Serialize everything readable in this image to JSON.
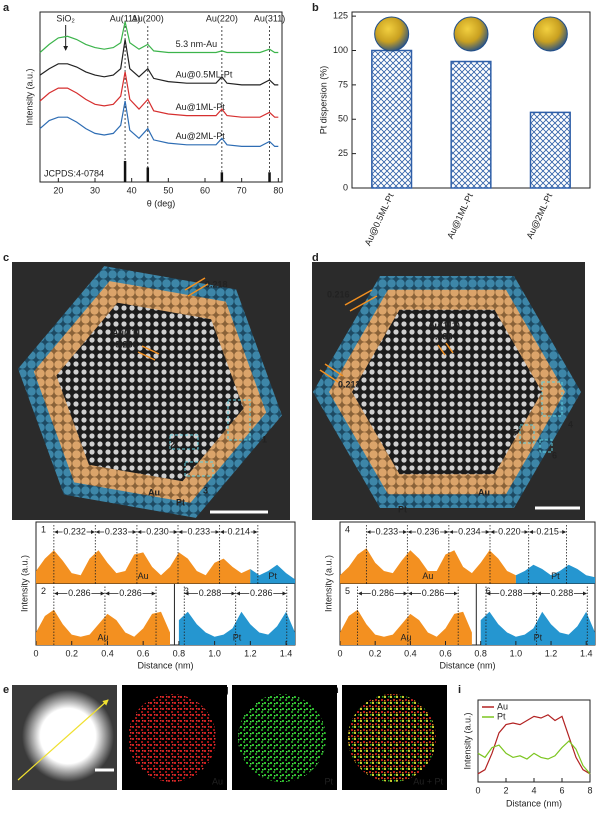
{
  "panel_labels": [
    "a",
    "b",
    "c",
    "d",
    "e",
    "f",
    "g",
    "h",
    "i"
  ],
  "chart_data": [
    {
      "type": "line",
      "xlabel": "θ (deg)",
      "ylabel": "Intensity (a.u.)",
      "x": [
        15,
        17.5,
        20,
        22.5,
        25,
        27.5,
        30,
        32.5,
        35,
        37,
        38.2,
        39.5,
        42,
        44.4,
        46,
        50,
        55,
        60,
        63,
        64.6,
        66,
        70,
        75,
        77.6,
        79,
        80
      ],
      "xlim": [
        15,
        81
      ],
      "xticks": [
        20,
        30,
        40,
        50,
        60,
        70,
        80
      ],
      "ylim": [
        0,
        10.5
      ],
      "series": [
        {
          "name": "5.3 nm-Au",
          "color": "#3cb44b",
          "values": [
            8.0,
            8.5,
            8.9,
            9.0,
            8.8,
            8.5,
            8.3,
            8.2,
            8.3,
            8.6,
            9.9,
            8.6,
            8.2,
            8.5,
            8.1,
            8.0,
            8.0,
            8.0,
            8.0,
            8.1,
            8.0,
            8.0,
            8.0,
            8.2,
            8.0,
            8.0
          ]
        },
        {
          "name": "Au@0.5ML-Pt",
          "color": "#222222",
          "values": [
            6.6,
            7.0,
            7.3,
            7.3,
            7.1,
            6.8,
            6.6,
            6.5,
            6.6,
            7.0,
            8.8,
            7.0,
            6.5,
            7.0,
            6.4,
            6.2,
            6.1,
            6.1,
            6.1,
            6.5,
            6.1,
            6.0,
            6.0,
            6.3,
            6.0,
            6.0
          ]
        },
        {
          "name": "Au@1ML-Pt",
          "color": "#d62f2f",
          "values": [
            5.0,
            5.5,
            5.8,
            5.8,
            5.5,
            5.1,
            4.8,
            4.7,
            4.8,
            5.3,
            6.8,
            5.1,
            4.5,
            5.1,
            4.4,
            4.2,
            4.1,
            4.1,
            4.1,
            4.5,
            4.1,
            4.0,
            4.0,
            4.3,
            4.0,
            4.0
          ]
        },
        {
          "name": "Au@2ML-Pt",
          "color": "#2e6db4",
          "values": [
            3.3,
            3.8,
            4.0,
            4.0,
            3.7,
            3.3,
            3.0,
            2.9,
            3.0,
            3.5,
            5.0,
            3.2,
            2.7,
            3.3,
            2.6,
            2.4,
            2.3,
            2.3,
            2.3,
            2.7,
            2.3,
            2.2,
            2.2,
            2.5,
            2.2,
            2.2
          ]
        }
      ],
      "peak_labels": [
        {
          "label": "Au(111)",
          "x": 38.2
        },
        {
          "label": "Au(200)",
          "x": 44.4
        },
        {
          "label": "Au(220)",
          "x": 64.6
        },
        {
          "label": "Au(311)",
          "x": 77.6
        }
      ],
      "annotation": {
        "label": "SiO₂",
        "x": 22
      },
      "reference": {
        "name": "JCPDS:4-0784",
        "x": [
          38.2,
          44.4,
          64.6,
          77.6
        ],
        "values": [
          1.3,
          0.9,
          0.6,
          0.6
        ]
      }
    },
    {
      "type": "bar",
      "ylabel": "Pt dispersion (%)",
      "categories": [
        "Au@0.5ML-Pt",
        "Au@1ML-Pt",
        "Au@2ML-Pt"
      ],
      "values": [
        100,
        92,
        55
      ],
      "color": "#2f5fa8",
      "ylim": [
        0,
        128
      ],
      "yticks": [
        0,
        25,
        50,
        75,
        100,
        125
      ]
    },
    {
      "type": "profile",
      "xlabel": "Distance (nm)",
      "ylabel": "Intensity (a.u.)",
      "xlim": [
        0,
        1.45
      ],
      "ylim": [
        0,
        1
      ],
      "xticks": [
        0,
        0.2,
        0.4,
        0.6,
        0.8,
        {
          "value": 1,
          "label": "1.0"
        },
        1.2,
        1.4
      ],
      "panels": [
        {
          "label": "1",
          "series": [
            {
              "name": "Au",
              "color": "#f39020",
              "x": [
                0,
                0.05,
                0.1,
                0.15,
                0.2,
                0.25,
                0.3,
                0.35,
                0.4,
                0.45,
                0.5,
                0.55,
                0.6,
                0.65,
                0.7,
                0.75,
                0.8,
                0.85,
                0.9,
                0.95,
                1,
                1.05,
                1.1,
                1.15,
                1.2
              ],
              "values": [
                0.3,
                0.6,
                0.8,
                0.55,
                0.25,
                0.2,
                0.6,
                0.8,
                0.5,
                0.25,
                0.3,
                0.7,
                0.75,
                0.4,
                0.2,
                0.4,
                0.75,
                0.6,
                0.3,
                0.2,
                0.5,
                0.6,
                0.4,
                0.25,
                0.35
              ]
            },
            {
              "name": "Pt",
              "color": "#2596d0",
              "x": [
                1.2,
                1.25,
                1.3,
                1.35,
                1.4,
                1.45
              ],
              "values": [
                0.35,
                0.2,
                0.3,
                0.45,
                0.25,
                0.1
              ]
            }
          ],
          "peaks": [
            0.1,
            0.332,
            0.565,
            0.795,
            1.028,
            1.242
          ],
          "spacings": [
            0.232,
            0.233,
            {
              "value": 0.23,
              "label": "0.230"
            },
            0.233,
            0.214
          ]
        },
        {
          "label": "2",
          "series": [
            {
              "name": "Au",
              "color": "#f39020",
              "x": [
                0,
                0.05,
                0.1,
                0.15,
                0.2,
                0.25,
                0.3,
                0.35,
                0.4,
                0.45,
                0.5,
                0.55,
                0.6,
                0.65,
                0.7,
                0.75
              ],
              "values": [
                0.3,
                0.7,
                0.85,
                0.5,
                0.25,
                0.2,
                0.25,
                0.5,
                0.75,
                0.6,
                0.3,
                0.2,
                0.4,
                0.75,
                0.8,
                0.3
              ]
            }
          ],
          "peaks": [
            0.1,
            0.386,
            0.672
          ],
          "spacings": [
            0.286,
            0.286
          ]
        },
        {
          "label": "3",
          "series": [
            {
              "name": "Pt",
              "color": "#2596d0",
              "x": [
                0.8,
                0.85,
                0.9,
                0.95,
                1,
                1.05,
                1.1,
                1.15,
                1.2,
                1.25,
                1.3,
                1.35,
                1.4,
                1.45
              ],
              "values": [
                0.6,
                0.8,
                0.5,
                0.3,
                0.2,
                0.25,
                0.4,
                0.8,
                0.5,
                0.3,
                0.25,
                0.45,
                0.8,
                0.3
              ]
            }
          ],
          "peaks": [
            0.83,
            1.118,
            1.404
          ],
          "spacings": [
            0.288,
            0.286
          ]
        }
      ]
    },
    {
      "type": "profile",
      "xlabel": "Distance (nm)",
      "ylabel": "Intensity (a.u.)",
      "xlim": [
        0,
        1.45
      ],
      "ylim": [
        0,
        1
      ],
      "xticks": [
        0,
        0.2,
        0.4,
        0.6,
        0.8,
        {
          "value": 1,
          "label": "1.0"
        },
        1.2,
        1.4
      ],
      "panels": [
        {
          "label": "4",
          "series": [
            {
              "name": "Au",
              "color": "#f39020",
              "x": [
                0,
                0.05,
                0.1,
                0.15,
                0.2,
                0.25,
                0.3,
                0.35,
                0.4,
                0.45,
                0.5,
                0.55,
                0.6,
                0.65,
                0.7,
                0.75,
                0.8,
                0.85,
                0.9,
                0.95,
                1
              ],
              "values": [
                0.2,
                0.4,
                0.7,
                0.85,
                0.5,
                0.3,
                0.25,
                0.55,
                0.8,
                0.6,
                0.3,
                0.3,
                0.7,
                0.8,
                0.4,
                0.25,
                0.5,
                0.8,
                0.6,
                0.3,
                0.2
              ]
            },
            {
              "name": "Pt",
              "color": "#2596d0",
              "x": [
                1,
                1.05,
                1.1,
                1.15,
                1.2,
                1.25,
                1.3,
                1.35,
                1.4,
                1.45
              ],
              "values": [
                0.2,
                0.3,
                0.45,
                0.35,
                0.2,
                0.3,
                0.45,
                0.35,
                0.2,
                0.15
              ]
            }
          ],
          "peaks": [
            0.15,
            0.383,
            0.619,
            0.853,
            1.073,
            1.288
          ],
          "spacings": [
            0.233,
            0.236,
            0.234,
            {
              "value": 0.22,
              "label": "0.220"
            },
            0.215
          ]
        },
        {
          "label": "5",
          "series": [
            {
              "name": "Au",
              "color": "#f39020",
              "x": [
                0,
                0.05,
                0.1,
                0.15,
                0.2,
                0.25,
                0.3,
                0.35,
                0.4,
                0.45,
                0.5,
                0.55,
                0.6,
                0.65,
                0.7,
                0.75
              ],
              "values": [
                0.3,
                0.7,
                0.85,
                0.5,
                0.25,
                0.2,
                0.25,
                0.5,
                0.75,
                0.6,
                0.3,
                0.2,
                0.4,
                0.75,
                0.8,
                0.3
              ]
            }
          ],
          "peaks": [
            0.1,
            0.386,
            0.672
          ],
          "spacings": [
            0.286,
            0.286
          ]
        },
        {
          "label": "6",
          "series": [
            {
              "name": "Pt",
              "color": "#2596d0",
              "x": [
                0.8,
                0.85,
                0.9,
                0.95,
                1,
                1.05,
                1.1,
                1.15,
                1.2,
                1.25,
                1.3,
                1.35,
                1.4,
                1.45
              ],
              "values": [
                0.6,
                0.8,
                0.5,
                0.3,
                0.2,
                0.25,
                0.4,
                0.8,
                0.5,
                0.3,
                0.25,
                0.45,
                0.8,
                0.3
              ]
            }
          ],
          "peaks": [
            0.83,
            1.118,
            1.406
          ],
          "spacings": [
            0.288,
            0.288
          ]
        }
      ]
    },
    {
      "type": "line",
      "xlabel": "Distance (nm)",
      "ylabel": "Intensity (a.u.)",
      "legend": "top-left",
      "x": [
        0,
        0.5,
        1,
        1.5,
        2,
        2.5,
        3,
        3.5,
        4,
        4.5,
        5,
        5.5,
        6,
        6.5,
        7,
        7.5,
        8
      ],
      "xlim": [
        0,
        8
      ],
      "xticks": [
        0,
        2,
        4,
        6,
        8
      ],
      "ylim": [
        0,
        1
      ],
      "series": [
        {
          "name": "Au",
          "color": "#b22222",
          "values": [
            0.1,
            0.15,
            0.35,
            0.6,
            0.7,
            0.72,
            0.7,
            0.75,
            0.8,
            0.78,
            0.82,
            0.75,
            0.8,
            0.55,
            0.3,
            0.15,
            0.1
          ]
        },
        {
          "name": "Pt",
          "color": "#7cc520",
          "values": [
            0.35,
            0.3,
            0.42,
            0.45,
            0.35,
            0.3,
            0.32,
            0.28,
            0.35,
            0.3,
            0.28,
            0.32,
            0.42,
            0.5,
            0.4,
            0.2,
            0.1
          ]
        }
      ]
    }
  ],
  "micrographs": [
    {
      "texts": [
        "0.218",
        "Au(111)",
        "0.236",
        "1",
        "2",
        "3",
        "Au",
        "Pt"
      ]
    },
    {
      "texts": [
        "0.216",
        "Au(111)",
        "0.236",
        "0.213",
        "4",
        "5",
        "6",
        "Au",
        "Pt"
      ]
    }
  ],
  "eds_labels": [
    "Au",
    "Pt",
    "Au + Pt"
  ]
}
